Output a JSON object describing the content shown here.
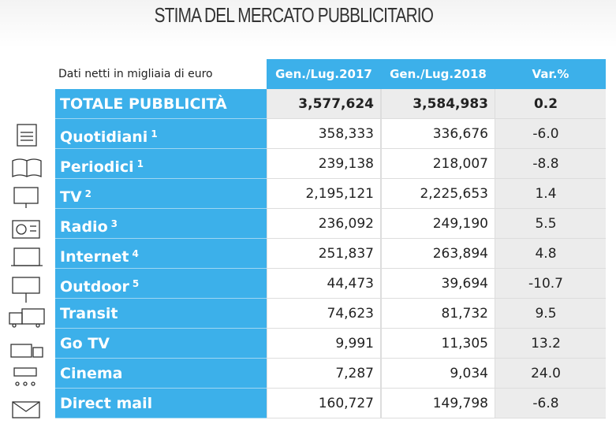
{
  "title": "STIMA DEL MERCATO PUBBLICITARIO",
  "table": {
    "caption": "Dati netti in migliaia di euro",
    "columns": [
      "Gen./Lug.2017",
      "Gen./Lug.2018",
      "Var.%"
    ],
    "rows": [
      {
        "label": "TOTALE PUBBLICITÀ",
        "values": [
          "3,577,624",
          "3,584,983",
          "0.2"
        ]
      },
      {
        "label": "Quotidiani",
        "note": "1",
        "values": [
          "358,333",
          "336,676",
          "-6.0"
        ]
      },
      {
        "label": "Periodici",
        "note": "1",
        "values": [
          "239,138",
          "218,007",
          "-8.8"
        ]
      },
      {
        "label": "TV",
        "note": "2",
        "values": [
          "2,195,121",
          "2,225,653",
          "1.4"
        ]
      },
      {
        "label": "Radio",
        "note": "3",
        "values": [
          "236,092",
          "249,190",
          "5.5"
        ]
      },
      {
        "label": "Internet",
        "note": "4",
        "values": [
          "251,837",
          "263,894",
          "4.8"
        ]
      },
      {
        "label": "Outdoor",
        "note": "5",
        "values": [
          "44,473",
          "39,694",
          "-10.7"
        ]
      },
      {
        "label": "Transit",
        "values": [
          "74,623",
          "81,732",
          "9.5"
        ]
      },
      {
        "label": "Go TV",
        "values": [
          "9,991",
          "11,305",
          "13.2"
        ]
      },
      {
        "label": "Cinema",
        "values": [
          "7,287",
          "9,034",
          "24.0"
        ]
      },
      {
        "label": "Direct mail",
        "values": [
          "160,727",
          "149,798",
          "-6.8"
        ]
      }
    ]
  }
}
